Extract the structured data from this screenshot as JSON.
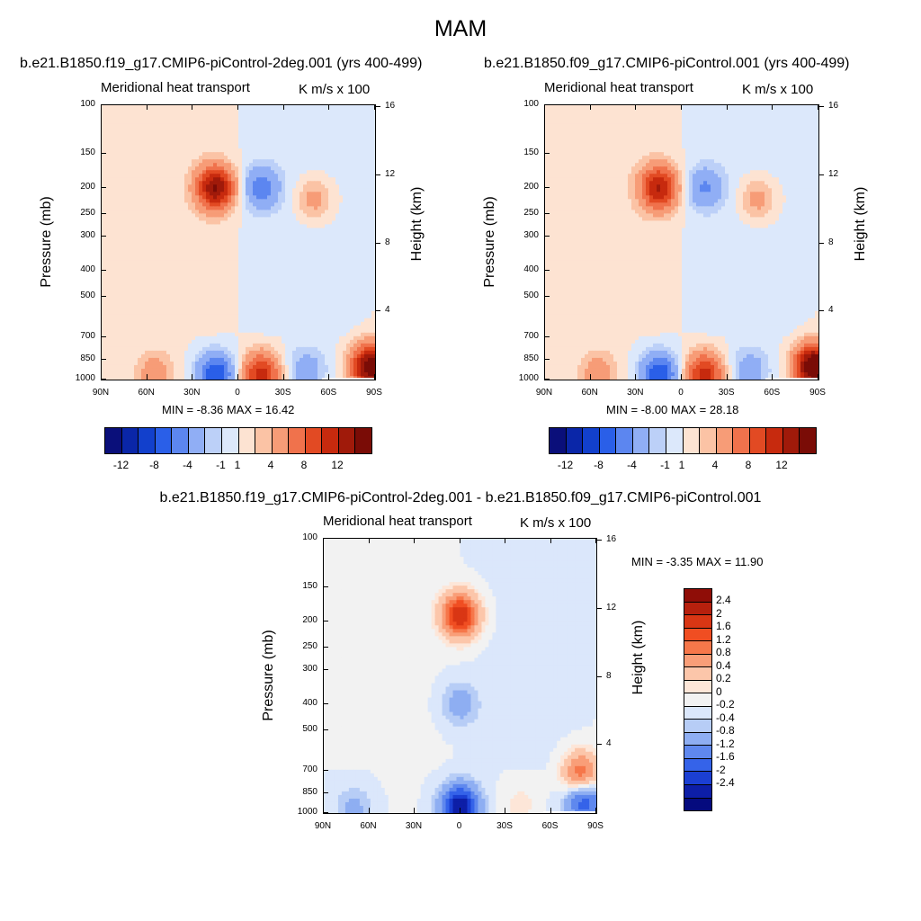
{
  "title": "MAM",
  "panels": [
    {
      "subtitle": "b.e21.B1850.f19_g17.CMIP6-piControl-2deg.001 (yrs 400-499)",
      "left_label": "Meridional heat transport",
      "right_label": "K m/s x 100",
      "ylabel": "Pressure (mb)",
      "ylabel_right": "Height (km)",
      "stats": "MIN =  -8.36  MAX =  16.42"
    },
    {
      "subtitle": "b.e21.B1850.f09_g17.CMIP6-piControl.001 (yrs 400-499)",
      "left_label": "Meridional heat transport",
      "right_label": "K m/s x 100",
      "ylabel": "Pressure (mb)",
      "ylabel_right": "Height (km)",
      "stats": "MIN =  -8.00  MAX =  28.18"
    },
    {
      "subtitle": "b.e21.B1850.f19_g17.CMIP6-piControl-2deg.001 - b.e21.B1850.f09_g17.CMIP6-piControl.001",
      "left_label": "Meridional heat transport",
      "right_label": "K m/s x 100",
      "ylabel": "Pressure (mb)",
      "ylabel_right": "Height (km)",
      "stats": "MIN =  -3.35  MAX =  11.90"
    }
  ],
  "axes": {
    "x_ticks": [
      "90N",
      "60N",
      "30N",
      "0",
      "30S",
      "60S",
      "90S"
    ],
    "pressure_ticks": [
      "100",
      "150",
      "200",
      "250",
      "300",
      "400",
      "500",
      "700",
      "850",
      "1000"
    ],
    "height_ticks": [
      "16",
      "12",
      "8",
      "4"
    ]
  },
  "colorbar_top": {
    "labels": [
      "-12",
      "-8",
      "-4",
      "-1",
      "1",
      "4",
      "8",
      "12"
    ],
    "colors": [
      "#0a0f7a",
      "#0a26a8",
      "#1240cc",
      "#2a5fe8",
      "#5c86f0",
      "#90aef5",
      "#bcd0f8",
      "#dce8fb",
      "#fde3d2",
      "#fbc3a5",
      "#f79c77",
      "#f0724c",
      "#e24a23",
      "#c72a0e",
      "#a01a0a",
      "#7a0c06"
    ]
  },
  "colorbar_diff": {
    "labels": [
      "2.4",
      "2",
      "1.6",
      "1.2",
      "0.8",
      "0.4",
      "0.2",
      "0",
      "-0.2",
      "-0.4",
      "-0.8",
      "-1.2",
      "-1.6",
      "-2",
      "-2.4"
    ],
    "colors": [
      "#8f0d07",
      "#b6200d",
      "#d93614",
      "#f04e22",
      "#f6774a",
      "#f99e78",
      "#fcc6aa",
      "#fde6d8",
      "#f2f2f2",
      "#dbe7fb",
      "#b7cdf6",
      "#8eaef2",
      "#5f88ee",
      "#3563e9",
      "#1b3fd3",
      "#0d1ea7",
      "#050a7e"
    ]
  },
  "chart_data": [
    {
      "type": "heatmap",
      "title": "b.e21.B1850.f19_g17.CMIP6-piControl-2deg.001 (yrs 400-499)",
      "xlabel": "",
      "ylabel": "Pressure (mb)",
      "y2label": "Height (km)",
      "x_ticks": [
        "90N",
        "60N",
        "30N",
        "0",
        "30S",
        "60S",
        "90S"
      ],
      "xlim": [
        90,
        -90
      ],
      "ylim": [
        1000,
        100
      ],
      "y_log_scale": true,
      "min": -8.36,
      "max": 16.42,
      "units": "K m/s x 100",
      "contour_levels": [
        -12,
        -10,
        -8,
        -6,
        -4,
        -2,
        -1,
        0,
        1,
        2,
        4,
        6,
        8,
        10,
        12
      ],
      "features": [
        {
          "lat": 15,
          "p": 200,
          "value": 12
        },
        {
          "lat": -15,
          "p": 200,
          "value": -5
        },
        {
          "lat": -50,
          "p": 220,
          "value": 3
        },
        {
          "lat": -15,
          "p": 960,
          "value": 9
        },
        {
          "lat": 15,
          "p": 960,
          "value": -8
        },
        {
          "lat": 55,
          "p": 950,
          "value": 3
        },
        {
          "lat": -45,
          "p": 920,
          "value": -3
        },
        {
          "lat": -87,
          "p": 900,
          "value": 14
        }
      ]
    },
    {
      "type": "heatmap",
      "title": "b.e21.B1850.f09_g17.CMIP6-piControl.001 (yrs 400-499)",
      "xlabel": "",
      "ylabel": "Pressure (mb)",
      "y2label": "Height (km)",
      "x_ticks": [
        "90N",
        "60N",
        "30N",
        "0",
        "30S",
        "60S",
        "90S"
      ],
      "xlim": [
        90,
        -90
      ],
      "ylim": [
        1000,
        100
      ],
      "y_log_scale": true,
      "min": -8.0,
      "max": 28.18,
      "units": "K m/s x 100",
      "contour_levels": [
        -12,
        -10,
        -8,
        -6,
        -4,
        -2,
        -1,
        0,
        1,
        2,
        4,
        6,
        8,
        10,
        12
      ],
      "features": [
        {
          "lat": 15,
          "p": 200,
          "value": 10
        },
        {
          "lat": -15,
          "p": 200,
          "value": -4
        },
        {
          "lat": -50,
          "p": 220,
          "value": 3
        },
        {
          "lat": -15,
          "p": 960,
          "value": 9
        },
        {
          "lat": 15,
          "p": 960,
          "value": -8
        },
        {
          "lat": 55,
          "p": 950,
          "value": 3
        },
        {
          "lat": -45,
          "p": 920,
          "value": -3
        },
        {
          "lat": -87,
          "p": 900,
          "value": 16
        }
      ]
    },
    {
      "type": "heatmap",
      "title": "b.e21.B1850.f19_g17.CMIP6-piControl-2deg.001 - b.e21.B1850.f09_g17.CMIP6-piControl.001",
      "xlabel": "",
      "ylabel": "Pressure (mb)",
      "y2label": "Height (km)",
      "x_ticks": [
        "90N",
        "60N",
        "30N",
        "0",
        "30S",
        "60S",
        "90S"
      ],
      "xlim": [
        90,
        -90
      ],
      "ylim": [
        1000,
        100
      ],
      "y_log_scale": true,
      "min": -3.35,
      "max": 11.9,
      "units": "K m/s x 100",
      "contour_levels": [
        -2.4,
        -2,
        -1.6,
        -1.2,
        -0.8,
        -0.4,
        -0.2,
        0,
        0.2,
        0.4,
        0.8,
        1.2,
        1.6,
        2,
        2.4
      ],
      "features": [
        {
          "lat": 0,
          "p": 190,
          "value": 2.4
        },
        {
          "lat": 0,
          "p": 950,
          "value": -2.4
        },
        {
          "lat": -80,
          "p": 720,
          "value": 1.6
        },
        {
          "lat": -82,
          "p": 900,
          "value": -1.6
        },
        {
          "lat": 0,
          "p": 400,
          "value": -0.6
        },
        {
          "lat": -40,
          "p": 930,
          "value": 0.3
        },
        {
          "lat": 70,
          "p": 960,
          "value": -0.5
        }
      ]
    }
  ]
}
